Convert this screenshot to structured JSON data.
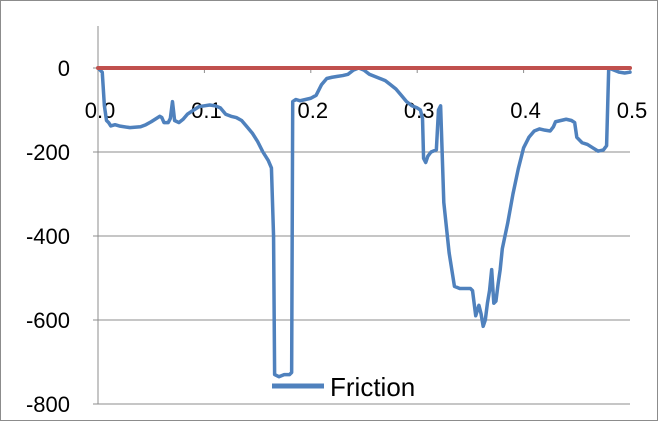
{
  "chart_data": {
    "type": "line",
    "xlim": [
      0,
      0.5
    ],
    "ylim": [
      -800,
      100
    ],
    "x_ticks": [
      "0.0",
      "0.1",
      "0.2",
      "0.3",
      "0.4",
      "0.5"
    ],
    "y_ticks": [
      "0",
      "-200",
      "-400",
      "-600",
      "-800"
    ],
    "grid": "horizontal",
    "legend_position": "bottom",
    "series": [
      {
        "name": "Friction",
        "color": "#4f81bd",
        "points": [
          [
            0.0,
            0
          ],
          [
            0.004,
            -10
          ],
          [
            0.006,
            -90
          ],
          [
            0.008,
            -125
          ],
          [
            0.01,
            -130
          ],
          [
            0.012,
            -138
          ],
          [
            0.016,
            -135
          ],
          [
            0.02,
            -138
          ],
          [
            0.03,
            -142
          ],
          [
            0.04,
            -140
          ],
          [
            0.045,
            -135
          ],
          [
            0.05,
            -128
          ],
          [
            0.055,
            -120
          ],
          [
            0.058,
            -115
          ],
          [
            0.06,
            -118
          ],
          [
            0.062,
            -130
          ],
          [
            0.066,
            -130
          ],
          [
            0.068,
            -120
          ],
          [
            0.07,
            -80
          ],
          [
            0.072,
            -125
          ],
          [
            0.076,
            -130
          ],
          [
            0.08,
            -122
          ],
          [
            0.084,
            -110
          ],
          [
            0.09,
            -100
          ],
          [
            0.095,
            -92
          ],
          [
            0.1,
            -90
          ],
          [
            0.105,
            -88
          ],
          [
            0.11,
            -90
          ],
          [
            0.115,
            -95
          ],
          [
            0.12,
            -110
          ],
          [
            0.125,
            -115
          ],
          [
            0.13,
            -118
          ],
          [
            0.135,
            -125
          ],
          [
            0.14,
            -140
          ],
          [
            0.145,
            -155
          ],
          [
            0.15,
            -175
          ],
          [
            0.155,
            -200
          ],
          [
            0.16,
            -220
          ],
          [
            0.163,
            -238
          ],
          [
            0.165,
            -400
          ],
          [
            0.166,
            -730
          ],
          [
            0.17,
            -735
          ],
          [
            0.175,
            -730
          ],
          [
            0.18,
            -730
          ],
          [
            0.182,
            -725
          ],
          [
            0.183,
            -80
          ],
          [
            0.186,
            -75
          ],
          [
            0.19,
            -78
          ],
          [
            0.195,
            -75
          ],
          [
            0.2,
            -72
          ],
          [
            0.205,
            -65
          ],
          [
            0.21,
            -40
          ],
          [
            0.215,
            -25
          ],
          [
            0.22,
            -22
          ],
          [
            0.225,
            -20
          ],
          [
            0.23,
            -18
          ],
          [
            0.235,
            -15
          ],
          [
            0.24,
            -5
          ],
          [
            0.245,
            0
          ],
          [
            0.25,
            -5
          ],
          [
            0.255,
            -15
          ],
          [
            0.26,
            -20
          ],
          [
            0.265,
            -25
          ],
          [
            0.27,
            -30
          ],
          [
            0.275,
            -40
          ],
          [
            0.28,
            -50
          ],
          [
            0.285,
            -65
          ],
          [
            0.29,
            -80
          ],
          [
            0.295,
            -90
          ],
          [
            0.3,
            -95
          ],
          [
            0.303,
            -100
          ],
          [
            0.305,
            -120
          ],
          [
            0.306,
            -215
          ],
          [
            0.308,
            -225
          ],
          [
            0.31,
            -210
          ],
          [
            0.313,
            -200
          ],
          [
            0.318,
            -195
          ],
          [
            0.32,
            -100
          ],
          [
            0.322,
            -90
          ],
          [
            0.325,
            -320
          ],
          [
            0.33,
            -440
          ],
          [
            0.335,
            -520
          ],
          [
            0.34,
            -525
          ],
          [
            0.345,
            -525
          ],
          [
            0.35,
            -525
          ],
          [
            0.352,
            -530
          ],
          [
            0.355,
            -590
          ],
          [
            0.358,
            -565
          ],
          [
            0.36,
            -585
          ],
          [
            0.362,
            -615
          ],
          [
            0.364,
            -600
          ],
          [
            0.366,
            -560
          ],
          [
            0.368,
            -530
          ],
          [
            0.37,
            -480
          ],
          [
            0.372,
            -560
          ],
          [
            0.374,
            -555
          ],
          [
            0.376,
            -515
          ],
          [
            0.378,
            -480
          ],
          [
            0.38,
            -430
          ],
          [
            0.385,
            -370
          ],
          [
            0.39,
            -300
          ],
          [
            0.395,
            -240
          ],
          [
            0.4,
            -190
          ],
          [
            0.405,
            -165
          ],
          [
            0.41,
            -150
          ],
          [
            0.415,
            -145
          ],
          [
            0.42,
            -148
          ],
          [
            0.425,
            -150
          ],
          [
            0.428,
            -140
          ],
          [
            0.43,
            -128
          ],
          [
            0.435,
            -125
          ],
          [
            0.44,
            -122
          ],
          [
            0.445,
            -125
          ],
          [
            0.448,
            -130
          ],
          [
            0.45,
            -165
          ],
          [
            0.455,
            -178
          ],
          [
            0.46,
            -182
          ],
          [
            0.465,
            -190
          ],
          [
            0.47,
            -198
          ],
          [
            0.475,
            -195
          ],
          [
            0.478,
            -185
          ],
          [
            0.48,
            0
          ],
          [
            0.485,
            -5
          ],
          [
            0.49,
            -10
          ],
          [
            0.495,
            -12
          ],
          [
            0.5,
            -10
          ]
        ]
      },
      {
        "name": "",
        "color": "#c0504d",
        "points": [
          [
            0.0,
            0
          ],
          [
            0.5,
            0
          ]
        ]
      }
    ],
    "legend": {
      "label": "Friction"
    }
  }
}
